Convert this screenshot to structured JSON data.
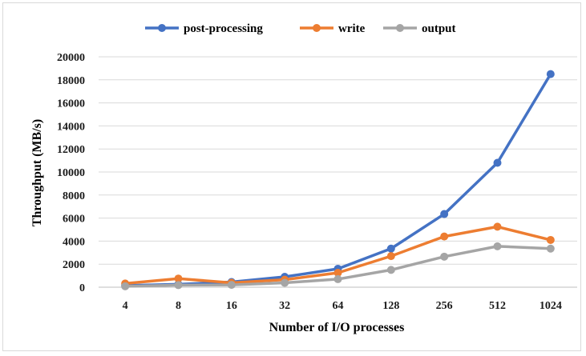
{
  "chart_data": {
    "type": "line",
    "title": "",
    "xlabel": "Number of I/O processes",
    "ylabel": "Throughput  (MB/s)",
    "categories": [
      "4",
      "8",
      "16",
      "32",
      "64",
      "128",
      "256",
      "512",
      "1024"
    ],
    "ylim": [
      0,
      20000
    ],
    "yticks": [
      "0",
      "2000",
      "4000",
      "6000",
      "8000",
      "10000",
      "12000",
      "14000",
      "16000",
      "18000",
      "20000"
    ],
    "grid": true,
    "legend_position": "top",
    "series": [
      {
        "name": "post-processing",
        "color": "#4472c4",
        "values": [
          150,
          250,
          450,
          900,
          1600,
          3350,
          6350,
          10800,
          18500
        ]
      },
      {
        "name": "write",
        "color": "#ed7d31",
        "values": [
          320,
          750,
          380,
          650,
          1250,
          2700,
          4400,
          5250,
          4100
        ]
      },
      {
        "name": "output",
        "color": "#a5a5a5",
        "values": [
          80,
          180,
          200,
          380,
          700,
          1500,
          2650,
          3550,
          3350
        ]
      }
    ]
  }
}
